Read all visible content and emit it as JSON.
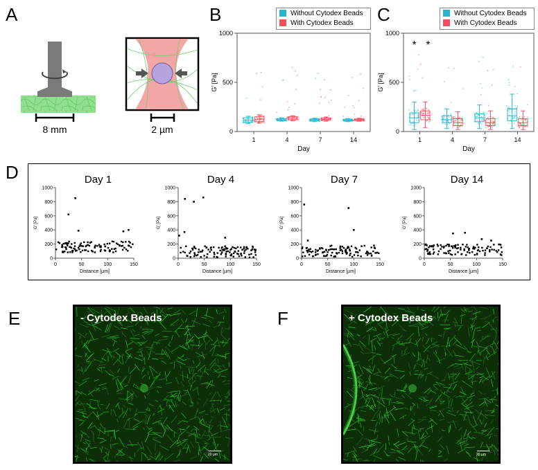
{
  "panels": {
    "a": "A",
    "b": "B",
    "c": "C",
    "d": "D",
    "e": "E",
    "f": "F"
  },
  "schematic": {
    "scale_left": "8 mm",
    "scale_right": "2 µm"
  },
  "colors": {
    "without": "#29b6cc",
    "with": "#f0525c",
    "gel_green": "#8ee08e",
    "laser_pink": "#f3a6a6",
    "bead": "#b7a3e0",
    "micro_green": "#3fcf3f"
  },
  "legend": {
    "without": "Without Cytodex Beads",
    "with": "With Cytodex Beads"
  },
  "micrographs": {
    "e_label": "- Cytodex Beads",
    "f_label": "+ Cytodex Beads",
    "e_scalebar": "20 µm",
    "f_scalebar": "20 µm"
  },
  "chart_data": [
    {
      "id": "B",
      "type": "box",
      "xlabel": "Day",
      "ylabel": "G' [Pa]",
      "ylim": [
        0,
        1000
      ],
      "yticks": [
        0,
        500,
        1000
      ],
      "categories": [
        "1",
        "4",
        "7",
        "14"
      ],
      "series": [
        {
          "name": "Without Cytodex Beads",
          "color": "#29b6cc",
          "boxes": [
            {
              "min": 80,
              "q1": 95,
              "median": 115,
              "q3": 140,
              "max": 155
            },
            {
              "min": 105,
              "q1": 112,
              "median": 120,
              "q3": 130,
              "max": 140
            },
            {
              "min": 100,
              "q1": 108,
              "median": 118,
              "q3": 128,
              "max": 135
            },
            {
              "min": 100,
              "q1": 108,
              "median": 115,
              "q3": 125,
              "max": 132
            }
          ]
        },
        {
          "name": "With Cytodex Beads",
          "color": "#f0525c",
          "boxes": [
            {
              "min": 85,
              "q1": 100,
              "median": 125,
              "q3": 150,
              "max": 170
            },
            {
              "min": 110,
              "q1": 120,
              "median": 135,
              "q3": 150,
              "max": 160
            },
            {
              "min": 105,
              "q1": 115,
              "median": 125,
              "q3": 138,
              "max": 148
            },
            {
              "min": 105,
              "q1": 112,
              "median": 120,
              "q3": 128,
              "max": 135
            }
          ]
        }
      ]
    },
    {
      "id": "C",
      "type": "box",
      "xlabel": "Day",
      "ylabel": "G' [Pa]",
      "ylim": [
        0,
        1000
      ],
      "yticks": [
        0,
        500,
        1000
      ],
      "categories": [
        "1",
        "4",
        "7",
        "14"
      ],
      "annotations": [
        "*",
        "*"
      ],
      "series": [
        {
          "name": "Without Cytodex Beads",
          "color": "#29b6cc",
          "boxes": [
            {
              "min": 20,
              "q1": 90,
              "median": 140,
              "q3": 190,
              "max": 300
            },
            {
              "min": 30,
              "q1": 90,
              "median": 120,
              "q3": 160,
              "max": 230
            },
            {
              "min": 30,
              "q1": 100,
              "median": 140,
              "q3": 180,
              "max": 270
            },
            {
              "min": 30,
              "q1": 110,
              "median": 160,
              "q3": 230,
              "max": 380
            }
          ]
        },
        {
          "name": "With Cytodex Beads",
          "color": "#f0525c",
          "boxes": [
            {
              "min": 40,
              "q1": 120,
              "median": 165,
              "q3": 210,
              "max": 300
            },
            {
              "min": 20,
              "q1": 60,
              "median": 90,
              "q3": 130,
              "max": 200
            },
            {
              "min": 20,
              "q1": 60,
              "median": 90,
              "q3": 130,
              "max": 210
            },
            {
              "min": 20,
              "q1": 60,
              "median": 90,
              "q3": 130,
              "max": 210
            }
          ]
        }
      ]
    },
    {
      "id": "D1",
      "type": "scatter",
      "title": "Day 1",
      "xlabel": "Distance [µm]",
      "ylabel": "G' [Pa]",
      "xlim": [
        0,
        150
      ],
      "ylim": [
        0,
        1000
      ],
      "xticks": [
        0,
        50,
        100,
        150
      ],
      "yticks": [
        0,
        200,
        400,
        600,
        800,
        1000
      ],
      "outliers": [
        [
          25,
          620
        ],
        [
          38,
          850
        ],
        [
          44,
          390
        ],
        [
          140,
          400
        ],
        [
          130,
          380
        ]
      ]
    },
    {
      "id": "D2",
      "type": "scatter",
      "title": "Day 4",
      "xlabel": "Distance [µm]",
      "ylabel": "G' [Pa]",
      "xlim": [
        0,
        150
      ],
      "ylim": [
        0,
        1000
      ],
      "xticks": [
        0,
        50,
        100,
        150
      ],
      "yticks": [
        0,
        200,
        400,
        600,
        800,
        1000
      ],
      "outliers": [
        [
          2,
          320
        ],
        [
          13,
          840
        ],
        [
          30,
          800
        ],
        [
          48,
          860
        ],
        [
          12,
          370
        ],
        [
          90,
          290
        ]
      ]
    },
    {
      "id": "D3",
      "type": "scatter",
      "title": "Day 7",
      "xlabel": "Distance [µm]",
      "ylabel": "G' [Pa]",
      "xlim": [
        0,
        150
      ],
      "ylim": [
        0,
        1000
      ],
      "xticks": [
        0,
        50,
        100,
        150
      ],
      "yticks": [
        0,
        200,
        400,
        600,
        800,
        1000
      ],
      "outliers": [
        [
          5,
          760
        ],
        [
          90,
          710
        ],
        [
          100,
          400
        ],
        [
          12,
          250
        ]
      ]
    },
    {
      "id": "D4",
      "type": "scatter",
      "title": "Day 14",
      "xlabel": "Distance [µm]",
      "ylabel": "G' [Pa]",
      "xlim": [
        0,
        150
      ],
      "ylim": [
        0,
        1000
      ],
      "xticks": [
        0,
        50,
        100,
        150
      ],
      "yticks": [
        0,
        200,
        400,
        600,
        800,
        1000
      ],
      "outliers": [
        [
          55,
          350
        ],
        [
          78,
          360
        ],
        [
          110,
          270
        ],
        [
          128,
          250
        ]
      ]
    }
  ]
}
